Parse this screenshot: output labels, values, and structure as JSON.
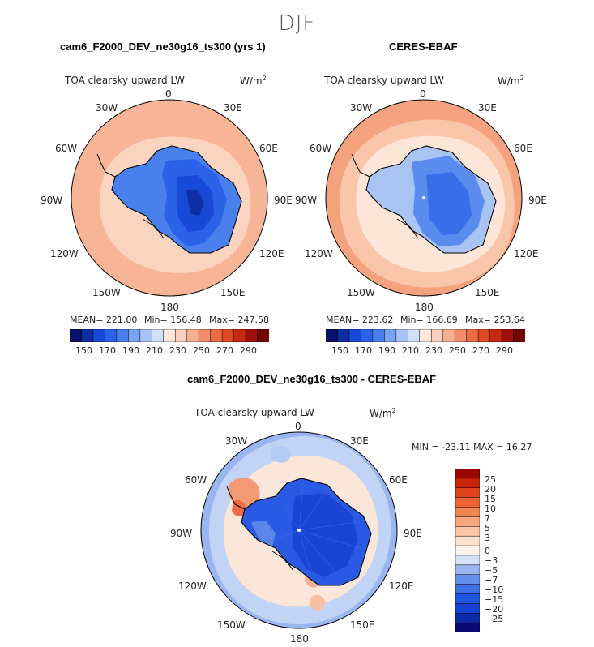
{
  "season": "DJF",
  "panels": [
    {
      "title": "cam6_F2000_DEV_ne30g16_ts300 (yrs 1)",
      "variable": "TOA clearsky upward LW",
      "units": "W/m",
      "units_sup": "2",
      "stats": {
        "mean": "MEAN= 221.00",
        "min": "Min= 156.48",
        "max": "Max= 247.58"
      }
    },
    {
      "title": "CERES-EBAF",
      "variable": "TOA clearsky upward LW",
      "units": "W/m",
      "units_sup": "2",
      "stats": {
        "mean": "MEAN= 223.62",
        "min": "Min= 166.69",
        "max": "Max= 253.64"
      }
    },
    {
      "title": "cam6_F2000_DEV_ne30g16_ts300 - CERES-EBAF",
      "variable": "TOA clearsky upward LW",
      "units": "W/m",
      "units_sup": "2",
      "minmax": "MIN = -23.11 MAX =  16.27"
    }
  ],
  "longitude_labels": [
    "0",
    "30E",
    "60E",
    "90E",
    "120E",
    "150E",
    "180",
    "150W",
    "120W",
    "90W",
    "60W",
    "30W"
  ],
  "colorbar_abs": {
    "colors": [
      "#08106a",
      "#0c2ea6",
      "#1848d6",
      "#2a62e8",
      "#4a7ef0",
      "#7aa2f2",
      "#a8c4f4",
      "#d0e0f8",
      "#fde8dc",
      "#fbd0bc",
      "#f7b090",
      "#f28d6a",
      "#ec6a44",
      "#e04824",
      "#c62a12",
      "#a01008",
      "#720404"
    ],
    "ticks": [
      "150",
      "170",
      "190",
      "210",
      "230",
      "250",
      "270",
      "290"
    ]
  },
  "colorbar_diff": {
    "colors": [
      "#0a0a72",
      "#0c2aa8",
      "#1442d2",
      "#1e56e0",
      "#3c70e8",
      "#6690ec",
      "#9ab6f0",
      "#d4e2f6",
      "#fdf0e8",
      "#fde0cc",
      "#fbc6a6",
      "#f8a47c",
      "#f38454",
      "#ec6434",
      "#e0441a",
      "#c82408",
      "#9c0602"
    ],
    "ticks": [
      "25",
      "20",
      "15",
      "10",
      "7",
      "5",
      "3",
      "0",
      "−3",
      "−5",
      "−7",
      "−10",
      "−15",
      "−20",
      "−25"
    ]
  }
}
